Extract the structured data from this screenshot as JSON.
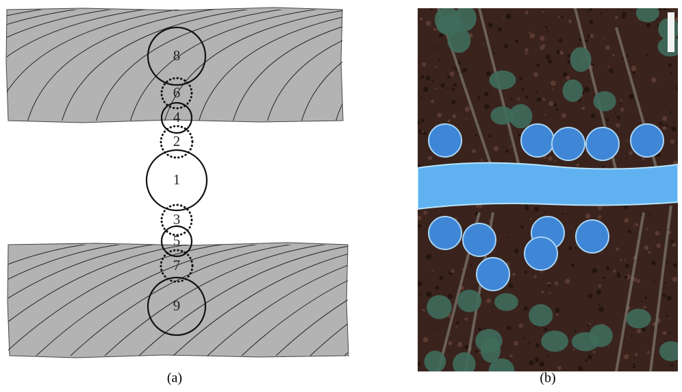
{
  "panels": [
    {
      "label": "(a)",
      "circles": [
        "8",
        "6",
        "4",
        "2",
        "1",
        "3",
        "5",
        "7",
        "9"
      ]
    },
    {
      "label": "(b)"
    }
  ]
}
